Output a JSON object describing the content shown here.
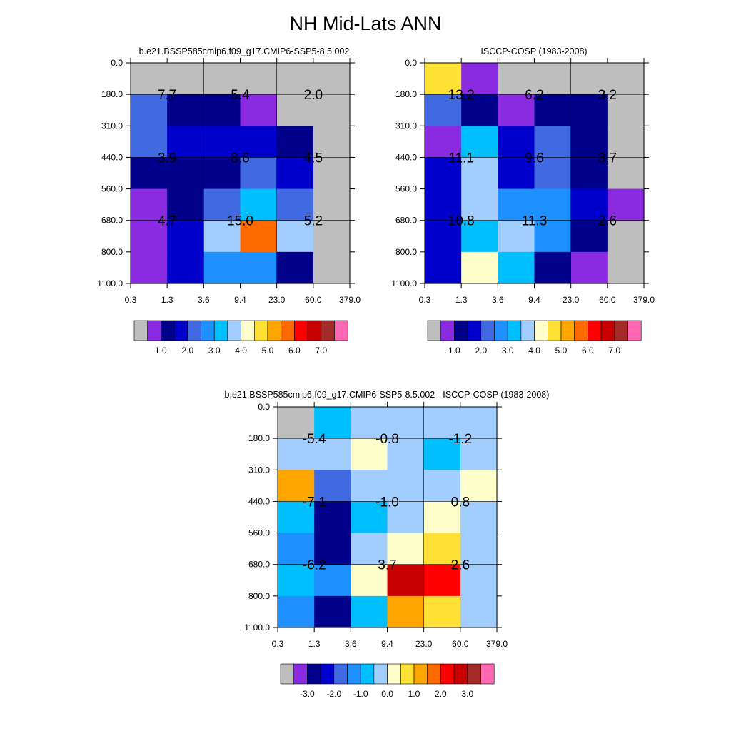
{
  "title": "NH Mid-Lats ANN",
  "chart_data": [
    {
      "type": "heatmap",
      "title": "b.e21.BSSP585cmip6.f09_g17.CMIP6-SSP5-8.5.002",
      "x_ticks": [
        "0.3",
        "1.3",
        "3.6",
        "9.4",
        "23.0",
        "60.0",
        "379.0"
      ],
      "y_ticks": [
        "0.0",
        "180.0",
        "310.0",
        "440.0",
        "560.0",
        "680.0",
        "800.0",
        "1100.0"
      ],
      "cell_colors": [
        [
          "#BEBEBE",
          "#BEBEBE",
          "#BEBEBE",
          "#BEBEBE",
          "#BEBEBE",
          "#BEBEBE"
        ],
        [
          "#4169E1",
          "#00008B",
          "#00008B",
          "#8A2BE2",
          "#BEBEBE",
          "#BEBEBE"
        ],
        [
          "#4169E1",
          "#0000CD",
          "#0000CD",
          "#0000CD",
          "#00008B",
          "#BEBEBE"
        ],
        [
          "#00008B",
          "#00008B",
          "#00008B",
          "#4169E1",
          "#0000CD",
          "#BEBEBE"
        ],
        [
          "#8A2BE2",
          "#00008B",
          "#4169E1",
          "#00BFFF",
          "#4169E1",
          "#BEBEBE"
        ],
        [
          "#8A2BE2",
          "#0000CD",
          "#A2CDFF",
          "#FF6A00",
          "#A2CDFF",
          "#BEBEBE"
        ],
        [
          "#8A2BE2",
          "#0000CD",
          "#1E90FF",
          "#1E90FF",
          "#00008B",
          "#BEBEBE"
        ]
      ],
      "annotations": [
        {
          "text": "7.7",
          "col": 1,
          "row": 1
        },
        {
          "text": "5.4",
          "col": 3,
          "row": 1
        },
        {
          "text": "2.0",
          "col": 5,
          "row": 1
        },
        {
          "text": "3.9",
          "col": 1,
          "row": 3
        },
        {
          "text": "8.6",
          "col": 3,
          "row": 3
        },
        {
          "text": "4.5",
          "col": 5,
          "row": 3
        },
        {
          "text": "4.7",
          "col": 1,
          "row": 5
        },
        {
          "text": "15.0",
          "col": 3,
          "row": 5
        },
        {
          "text": "5.2",
          "col": 5,
          "row": 5
        }
      ],
      "colorbar": {
        "colors": [
          "#BEBEBE",
          "#8A2BE2",
          "#00008B",
          "#0000CD",
          "#4169E1",
          "#1E90FF",
          "#00BFFF",
          "#A2CDFF",
          "#FFFFCC",
          "#FFE135",
          "#FFA500",
          "#FF6A00",
          "#FF0000",
          "#C80000",
          "#A52A2A",
          "#FF69B4"
        ],
        "labels": [
          "1.0",
          "2.0",
          "3.0",
          "4.0",
          "5.0",
          "6.0",
          "7.0"
        ]
      }
    },
    {
      "type": "heatmap",
      "title": "ISCCP-COSP (1983-2008)",
      "x_ticks": [
        "0.3",
        "1.3",
        "3.6",
        "9.4",
        "23.0",
        "60.0",
        "379.0"
      ],
      "y_ticks": [
        "0.0",
        "180.0",
        "310.0",
        "440.0",
        "560.0",
        "680.0",
        "800.0",
        "1100.0"
      ],
      "cell_colors": [
        [
          "#FFE135",
          "#8A2BE2",
          "#BEBEBE",
          "#BEBEBE",
          "#BEBEBE",
          "#BEBEBE"
        ],
        [
          "#4169E1",
          "#00008B",
          "#8A2BE2",
          "#00008B",
          "#00008B",
          "#BEBEBE"
        ],
        [
          "#8A2BE2",
          "#00BFFF",
          "#0000CD",
          "#4169E1",
          "#00008B",
          "#BEBEBE"
        ],
        [
          "#0000CD",
          "#A2CDFF",
          "#0000CD",
          "#4169E1",
          "#00008B",
          "#BEBEBE"
        ],
        [
          "#0000CD",
          "#A2CDFF",
          "#1E90FF",
          "#1E90FF",
          "#0000CD",
          "#8A2BE2"
        ],
        [
          "#0000CD",
          "#00BFFF",
          "#A2CDFF",
          "#1E90FF",
          "#00008B",
          "#BEBEBE"
        ],
        [
          "#0000CD",
          "#FFFFCC",
          "#00BFFF",
          "#00008B",
          "#8A2BE2",
          "#BEBEBE"
        ]
      ],
      "annotations": [
        {
          "text": "13.2",
          "col": 1,
          "row": 1
        },
        {
          "text": "6.2",
          "col": 3,
          "row": 1
        },
        {
          "text": "3.2",
          "col": 5,
          "row": 1
        },
        {
          "text": "11.1",
          "col": 1,
          "row": 3
        },
        {
          "text": "9.6",
          "col": 3,
          "row": 3
        },
        {
          "text": "3.7",
          "col": 5,
          "row": 3
        },
        {
          "text": "10.8",
          "col": 1,
          "row": 5
        },
        {
          "text": "11.3",
          "col": 3,
          "row": 5
        },
        {
          "text": "2.6",
          "col": 5,
          "row": 5
        }
      ],
      "colorbar": {
        "colors": [
          "#BEBEBE",
          "#8A2BE2",
          "#00008B",
          "#0000CD",
          "#4169E1",
          "#1E90FF",
          "#00BFFF",
          "#A2CDFF",
          "#FFFFCC",
          "#FFE135",
          "#FFA500",
          "#FF6A00",
          "#FF0000",
          "#C80000",
          "#A52A2A",
          "#FF69B4"
        ],
        "labels": [
          "1.0",
          "2.0",
          "3.0",
          "4.0",
          "5.0",
          "6.0",
          "7.0"
        ]
      }
    },
    {
      "type": "heatmap",
      "title": "b.e21.BSSP585cmip6.f09_g17.CMIP6-SSP5-8.5.002 - ISCCP-COSP (1983-2008)",
      "x_ticks": [
        "0.3",
        "1.3",
        "3.6",
        "9.4",
        "23.0",
        "60.0",
        "379.0"
      ],
      "y_ticks": [
        "0.0",
        "180.0",
        "310.0",
        "440.0",
        "560.0",
        "680.0",
        "800.0",
        "1100.0"
      ],
      "cell_colors": [
        [
          "#BEBEBE",
          "#00BFFF",
          "#A2CDFF",
          "#A2CDFF",
          "#A2CDFF",
          "#A2CDFF"
        ],
        [
          "#A2CDFF",
          "#A2CDFF",
          "#FFFFCC",
          "#A2CDFF",
          "#00BFFF",
          "#A2CDFF"
        ],
        [
          "#FFA500",
          "#4169E1",
          "#A2CDFF",
          "#A2CDFF",
          "#A2CDFF",
          "#FFFFCC"
        ],
        [
          "#00BFFF",
          "#00008B",
          "#00BFFF",
          "#A2CDFF",
          "#FFFFCC",
          "#A2CDFF"
        ],
        [
          "#1E90FF",
          "#00008B",
          "#A2CDFF",
          "#FFFFCC",
          "#FFE135",
          "#A2CDFF"
        ],
        [
          "#00BFFF",
          "#1E90FF",
          "#FFFFCC",
          "#C80000",
          "#FF0000",
          "#A2CDFF"
        ],
        [
          "#1E90FF",
          "#00008B",
          "#00BFFF",
          "#FFA500",
          "#FFE135",
          "#A2CDFF"
        ]
      ],
      "annotations": [
        {
          "text": "-5.4",
          "col": 1,
          "row": 1
        },
        {
          "text": "-0.8",
          "col": 3,
          "row": 1
        },
        {
          "text": "-1.2",
          "col": 5,
          "row": 1
        },
        {
          "text": "-7.1",
          "col": 1,
          "row": 3
        },
        {
          "text": "-1.0",
          "col": 3,
          "row": 3
        },
        {
          "text": "0.8",
          "col": 5,
          "row": 3
        },
        {
          "text": "-6.2",
          "col": 1,
          "row": 5
        },
        {
          "text": "3.7",
          "col": 3,
          "row": 5
        },
        {
          "text": "2.6",
          "col": 5,
          "row": 5
        }
      ],
      "colorbar": {
        "colors": [
          "#BEBEBE",
          "#8A2BE2",
          "#00008B",
          "#0000CD",
          "#4169E1",
          "#1E90FF",
          "#00BFFF",
          "#A2CDFF",
          "#FFFFCC",
          "#FFE135",
          "#FFA500",
          "#FF6A00",
          "#FF0000",
          "#C80000",
          "#A52A2A",
          "#FF69B4"
        ],
        "labels": [
          "-3.0",
          "-2.0",
          "-1.0",
          "0.0",
          "1.0",
          "2.0",
          "3.0"
        ]
      }
    }
  ]
}
